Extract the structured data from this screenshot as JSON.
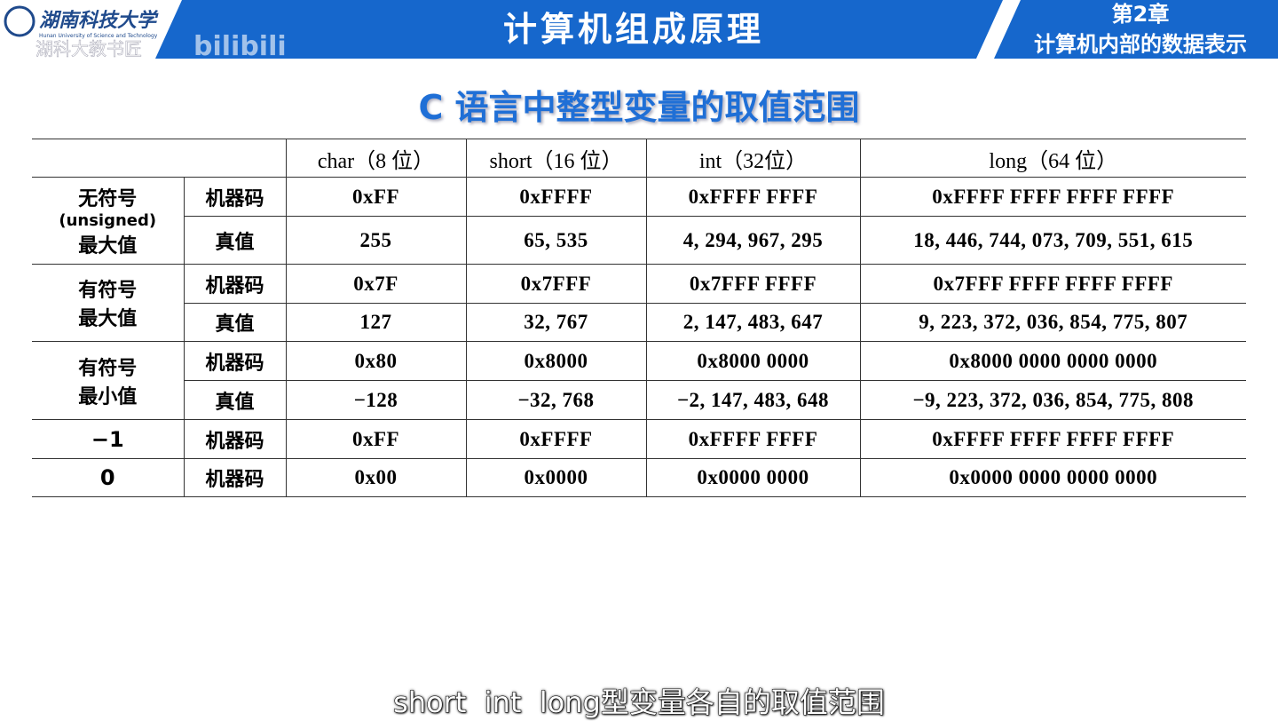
{
  "header": {
    "logo_name": "湖南科技大学",
    "logo_subtitle": "Hunan University of Science and Technology",
    "watermark": "湖科大教书匠",
    "watermark_site": "bilibili",
    "course_title": "计算机组成原理",
    "chapter": "第2章",
    "chapter_title": "计算机内部的数据表示"
  },
  "slide_title": "C 语言中整型变量的取值范围",
  "table": {
    "columns": [
      "char（8 位）",
      "short（16 位）",
      "int（32位）",
      "long（64 位）"
    ],
    "groups": [
      {
        "label": [
          "无符号",
          "(unsigned)",
          "最大值"
        ],
        "rows": [
          {
            "kind": "机器码",
            "cells": [
              "0xFF",
              "0xFFFF",
              "0xFFFF FFFF",
              "0xFFFF FFFF FFFF FFFF"
            ]
          },
          {
            "kind": "真值",
            "cells": [
              "255",
              "65, 535",
              "4, 294, 967, 295",
              "18, 446, 744, 073, 709, 551, 615"
            ]
          }
        ]
      },
      {
        "label": [
          "有符号",
          "最大值"
        ],
        "rows": [
          {
            "kind": "机器码",
            "cells": [
              "0x7F",
              "0x7FFF",
              "0x7FFF FFFF",
              "0x7FFF FFFF FFFF FFFF"
            ]
          },
          {
            "kind": "真值",
            "cells": [
              "127",
              "32, 767",
              "2, 147, 483, 647",
              "9, 223, 372, 036, 854, 775, 807"
            ]
          }
        ]
      },
      {
        "label": [
          "有符号",
          "最小值"
        ],
        "rows": [
          {
            "kind": "机器码",
            "cells": [
              "0x80",
              "0x8000",
              "0x8000 0000",
              "0x8000 0000 0000 0000"
            ]
          },
          {
            "kind": "真值",
            "cells": [
              "−128",
              "−32, 768",
              "−2, 147, 483, 648",
              "−9, 223, 372, 036, 854, 775, 808"
            ]
          }
        ]
      },
      {
        "label": [
          "−1"
        ],
        "rows": [
          {
            "kind": "机器码",
            "cells": [
              "0xFF",
              "0xFFFF",
              "0xFFFF FFFF",
              "0xFFFF FFFF FFFF FFFF"
            ]
          }
        ]
      },
      {
        "label": [
          "0"
        ],
        "rows": [
          {
            "kind": "机器码",
            "cells": [
              "0x00",
              "0x0000",
              "0x0000 0000",
              "0x0000 0000 0000 0000"
            ]
          }
        ]
      }
    ]
  },
  "caption": "short  int  long型变量各自的取值范围"
}
